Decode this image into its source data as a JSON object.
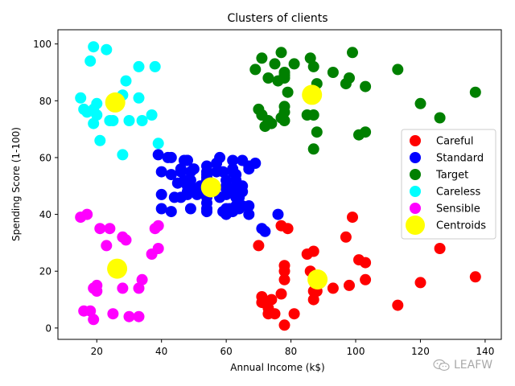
{
  "chart_data": {
    "type": "scatter",
    "title": "Clusters of clients",
    "xlabel": "Annual Income (k$)",
    "ylabel": "Spending Score (1-100)",
    "xlim": [
      8,
      145
    ],
    "ylim": [
      -4,
      105
    ],
    "xticks": [
      20,
      40,
      60,
      80,
      100,
      120,
      140
    ],
    "yticks": [
      0,
      20,
      40,
      60,
      80,
      100
    ],
    "legend_position": "center-right",
    "series": [
      {
        "name": "Careful",
        "color": "#ff0000",
        "points": [
          [
            70,
            29
          ],
          [
            71,
            11
          ],
          [
            71,
            9
          ],
          [
            73,
            5
          ],
          [
            73,
            7
          ],
          [
            74,
            10
          ],
          [
            75,
            5
          ],
          [
            77,
            12
          ],
          [
            77,
            36
          ],
          [
            78,
            1
          ],
          [
            78,
            22
          ],
          [
            78,
            17
          ],
          [
            78,
            20
          ],
          [
            79,
            35
          ],
          [
            81,
            5
          ],
          [
            85,
            26
          ],
          [
            86,
            20
          ],
          [
            87,
            27
          ],
          [
            87,
            10
          ],
          [
            87,
            13
          ],
          [
            88,
            15
          ],
          [
            88,
            13
          ],
          [
            93,
            14
          ],
          [
            97,
            32
          ],
          [
            98,
            15
          ],
          [
            99,
            39
          ],
          [
            101,
            24
          ],
          [
            103,
            17
          ],
          [
            103,
            23
          ],
          [
            113,
            8
          ],
          [
            120,
            16
          ],
          [
            126,
            28
          ],
          [
            137,
            18
          ]
        ]
      },
      {
        "name": "Standard",
        "color": "#0000ff",
        "points": [
          [
            39,
            61
          ],
          [
            40,
            55
          ],
          [
            40,
            47
          ],
          [
            40,
            42
          ],
          [
            42,
            60
          ],
          [
            43,
            60
          ],
          [
            43,
            54
          ],
          [
            43,
            41
          ],
          [
            44,
            46
          ],
          [
            45,
            51
          ],
          [
            46,
            46
          ],
          [
            46,
            56
          ],
          [
            46,
            55
          ],
          [
            47,
            52
          ],
          [
            47,
            59
          ],
          [
            48,
            51
          ],
          [
            48,
            59
          ],
          [
            48,
            50
          ],
          [
            48,
            48
          ],
          [
            48,
            59
          ],
          [
            48,
            47
          ],
          [
            49,
            55
          ],
          [
            49,
            42
          ],
          [
            50,
            49
          ],
          [
            50,
            56
          ],
          [
            54,
            47
          ],
          [
            54,
            54
          ],
          [
            54,
            53
          ],
          [
            54,
            48
          ],
          [
            54,
            52
          ],
          [
            54,
            42
          ],
          [
            54,
            51
          ],
          [
            54,
            55
          ],
          [
            54,
            41
          ],
          [
            54,
            44
          ],
          [
            54,
            57
          ],
          [
            54,
            46
          ],
          [
            57,
            58
          ],
          [
            57,
            55
          ],
          [
            58,
            60
          ],
          [
            58,
            46
          ],
          [
            59,
            55
          ],
          [
            59,
            41
          ],
          [
            60,
            49
          ],
          [
            60,
            40
          ],
          [
            60,
            42
          ],
          [
            60,
            52
          ],
          [
            60,
            47
          ],
          [
            60,
            50
          ],
          [
            61,
            42
          ],
          [
            61,
            49
          ],
          [
            62,
            41
          ],
          [
            62,
            48
          ],
          [
            62,
            59
          ],
          [
            62,
            55
          ],
          [
            62,
            56
          ],
          [
            62,
            42
          ],
          [
            63,
            50
          ],
          [
            63,
            46
          ],
          [
            63,
            43
          ],
          [
            63,
            48
          ],
          [
            63,
            52
          ],
          [
            63,
            54
          ],
          [
            64,
            42
          ],
          [
            64,
            46
          ],
          [
            65,
            48
          ],
          [
            65,
            50
          ],
          [
            65,
            43
          ],
          [
            65,
            59
          ],
          [
            67,
            43
          ],
          [
            67,
            57
          ],
          [
            67,
            56
          ],
          [
            67,
            40
          ],
          [
            69,
            58
          ],
          [
            71,
            35
          ],
          [
            72,
            34
          ],
          [
            76,
            40
          ],
          [
            49,
            52
          ],
          [
            51,
            47
          ],
          [
            52,
            50
          ]
        ]
      },
      {
        "name": "Target",
        "color": "#008000",
        "points": [
          [
            69,
            91
          ],
          [
            70,
            77
          ],
          [
            71,
            95
          ],
          [
            71,
            75
          ],
          [
            71,
            75
          ],
          [
            72,
            71
          ],
          [
            73,
            88
          ],
          [
            73,
            73
          ],
          [
            74,
            72
          ],
          [
            75,
            93
          ],
          [
            76,
            87
          ],
          [
            77,
            97
          ],
          [
            77,
            74
          ],
          [
            78,
            90
          ],
          [
            78,
            88
          ],
          [
            78,
            76
          ],
          [
            78,
            89
          ],
          [
            78,
            78
          ],
          [
            78,
            73
          ],
          [
            79,
            83
          ],
          [
            81,
            93
          ],
          [
            85,
            75
          ],
          [
            86,
            95
          ],
          [
            87,
            63
          ],
          [
            87,
            75
          ],
          [
            87,
            92
          ],
          [
            88,
            86
          ],
          [
            88,
            69
          ],
          [
            93,
            90
          ],
          [
            97,
            86
          ],
          [
            98,
            88
          ],
          [
            99,
            97
          ],
          [
            101,
            68
          ],
          [
            103,
            85
          ],
          [
            103,
            69
          ],
          [
            113,
            91
          ],
          [
            120,
            79
          ],
          [
            126,
            74
          ],
          [
            137,
            83
          ]
        ]
      },
      {
        "name": "Careless",
        "color": "#00ffff",
        "points": [
          [
            15,
            81
          ],
          [
            16,
            77
          ],
          [
            17,
            76
          ],
          [
            18,
            94
          ],
          [
            19,
            72
          ],
          [
            19,
            99
          ],
          [
            19,
            77
          ],
          [
            20,
            79
          ],
          [
            20,
            75
          ],
          [
            21,
            66
          ],
          [
            23,
            98
          ],
          [
            24,
            73
          ],
          [
            25,
            73
          ],
          [
            28,
            82
          ],
          [
            28,
            61
          ],
          [
            29,
            87
          ],
          [
            30,
            73
          ],
          [
            33,
            92
          ],
          [
            33,
            81
          ],
          [
            34,
            73
          ],
          [
            37,
            75
          ],
          [
            38,
            92
          ],
          [
            39,
            65
          ]
        ]
      },
      {
        "name": "Sensible",
        "color": "#ff00ff",
        "points": [
          [
            15,
            39
          ],
          [
            16,
            6
          ],
          [
            17,
            40
          ],
          [
            18,
            6
          ],
          [
            19,
            3
          ],
          [
            19,
            14
          ],
          [
            20,
            15
          ],
          [
            20,
            13
          ],
          [
            21,
            35
          ],
          [
            23,
            29
          ],
          [
            24,
            35
          ],
          [
            25,
            5
          ],
          [
            28,
            14
          ],
          [
            28,
            32
          ],
          [
            29,
            31
          ],
          [
            30,
            4
          ],
          [
            33,
            4
          ],
          [
            33,
            14
          ],
          [
            34,
            17
          ],
          [
            37,
            26
          ],
          [
            38,
            35
          ],
          [
            39,
            36
          ],
          [
            39,
            28
          ]
        ]
      },
      {
        "name": "Centroids",
        "color": "#ffff00",
        "points": [
          [
            86.5,
            82.1
          ],
          [
            55.3,
            49.5
          ],
          [
            88.2,
            17.1
          ],
          [
            25.7,
            79.4
          ],
          [
            26.3,
            20.9
          ]
        ]
      }
    ]
  },
  "watermark": {
    "text": "LEAFW",
    "icon": "wechat-icon"
  }
}
